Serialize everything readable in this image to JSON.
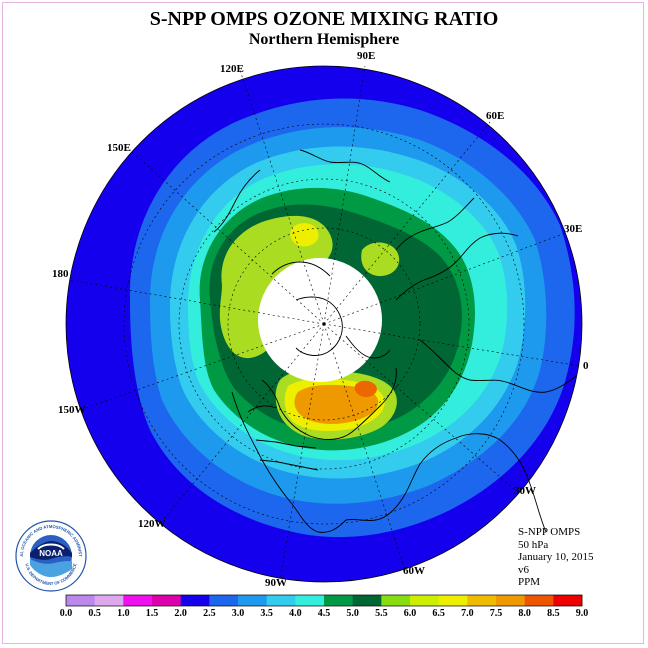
{
  "header": {
    "title": "S-NPP OMPS OZONE MIXING RATIO",
    "subtitle": "Northern Hemisphere"
  },
  "longitude_labels": {
    "lon_90e": "90E",
    "lon_60e": "60E",
    "lon_120e": "120E",
    "lon_150e": "150E",
    "lon_30e": "30E",
    "lon_180": "180",
    "lon_0": "0",
    "lon_150w": "150W",
    "lon_30w": "30W",
    "lon_120w": "120W",
    "lon_60w": "60W",
    "lon_90w": "90W"
  },
  "info": {
    "instrument": "S-NPP OMPS",
    "level": "50 hPa",
    "date": "January 10, 2015",
    "version": "v6",
    "units": "PPM"
  },
  "logo": {
    "text": "NOAA",
    "ring_text": "NATIONAL OCEANIC AND ATMOSPHERIC ADMINISTRATION",
    "ring_text_bottom": "U.S. DEPARTMENT OF COMMERCE"
  },
  "colorbar": {
    "ticks": [
      "0.0",
      "0.5",
      "1.0",
      "1.5",
      "2.0",
      "2.5",
      "3.0",
      "3.5",
      "4.0",
      "4.5",
      "5.0",
      "5.5",
      "6.0",
      "6.5",
      "7.0",
      "7.5",
      "8.0",
      "8.5",
      "9.0"
    ],
    "colors": [
      "#bb88ee",
      "#dda8ee",
      "#ee11ee",
      "#dd00aa",
      "#1500ee",
      "#1d66ee",
      "#1d99ee",
      "#33ccee",
      "#33eedd",
      "#009944",
      "#006633",
      "#88dd11",
      "#ccee00",
      "#eeee00",
      "#eebb00",
      "#ee9900",
      "#ee5500",
      "#ee0000",
      "#996644"
    ]
  },
  "map_colors": {
    "outer_ring": "#1500ee",
    "ring_2": "#1d66ee",
    "ring_3": "#1d99ee",
    "ring_4": "#33ccee",
    "ring_5": "#33eedd",
    "ring_6": "#009944",
    "ring_7": "#006633",
    "lime": "#aadd22",
    "yellow": "#eeee00",
    "orange": "#ee9900",
    "deep_orange": "#ee6600",
    "polar_cap": "#ffffff"
  }
}
